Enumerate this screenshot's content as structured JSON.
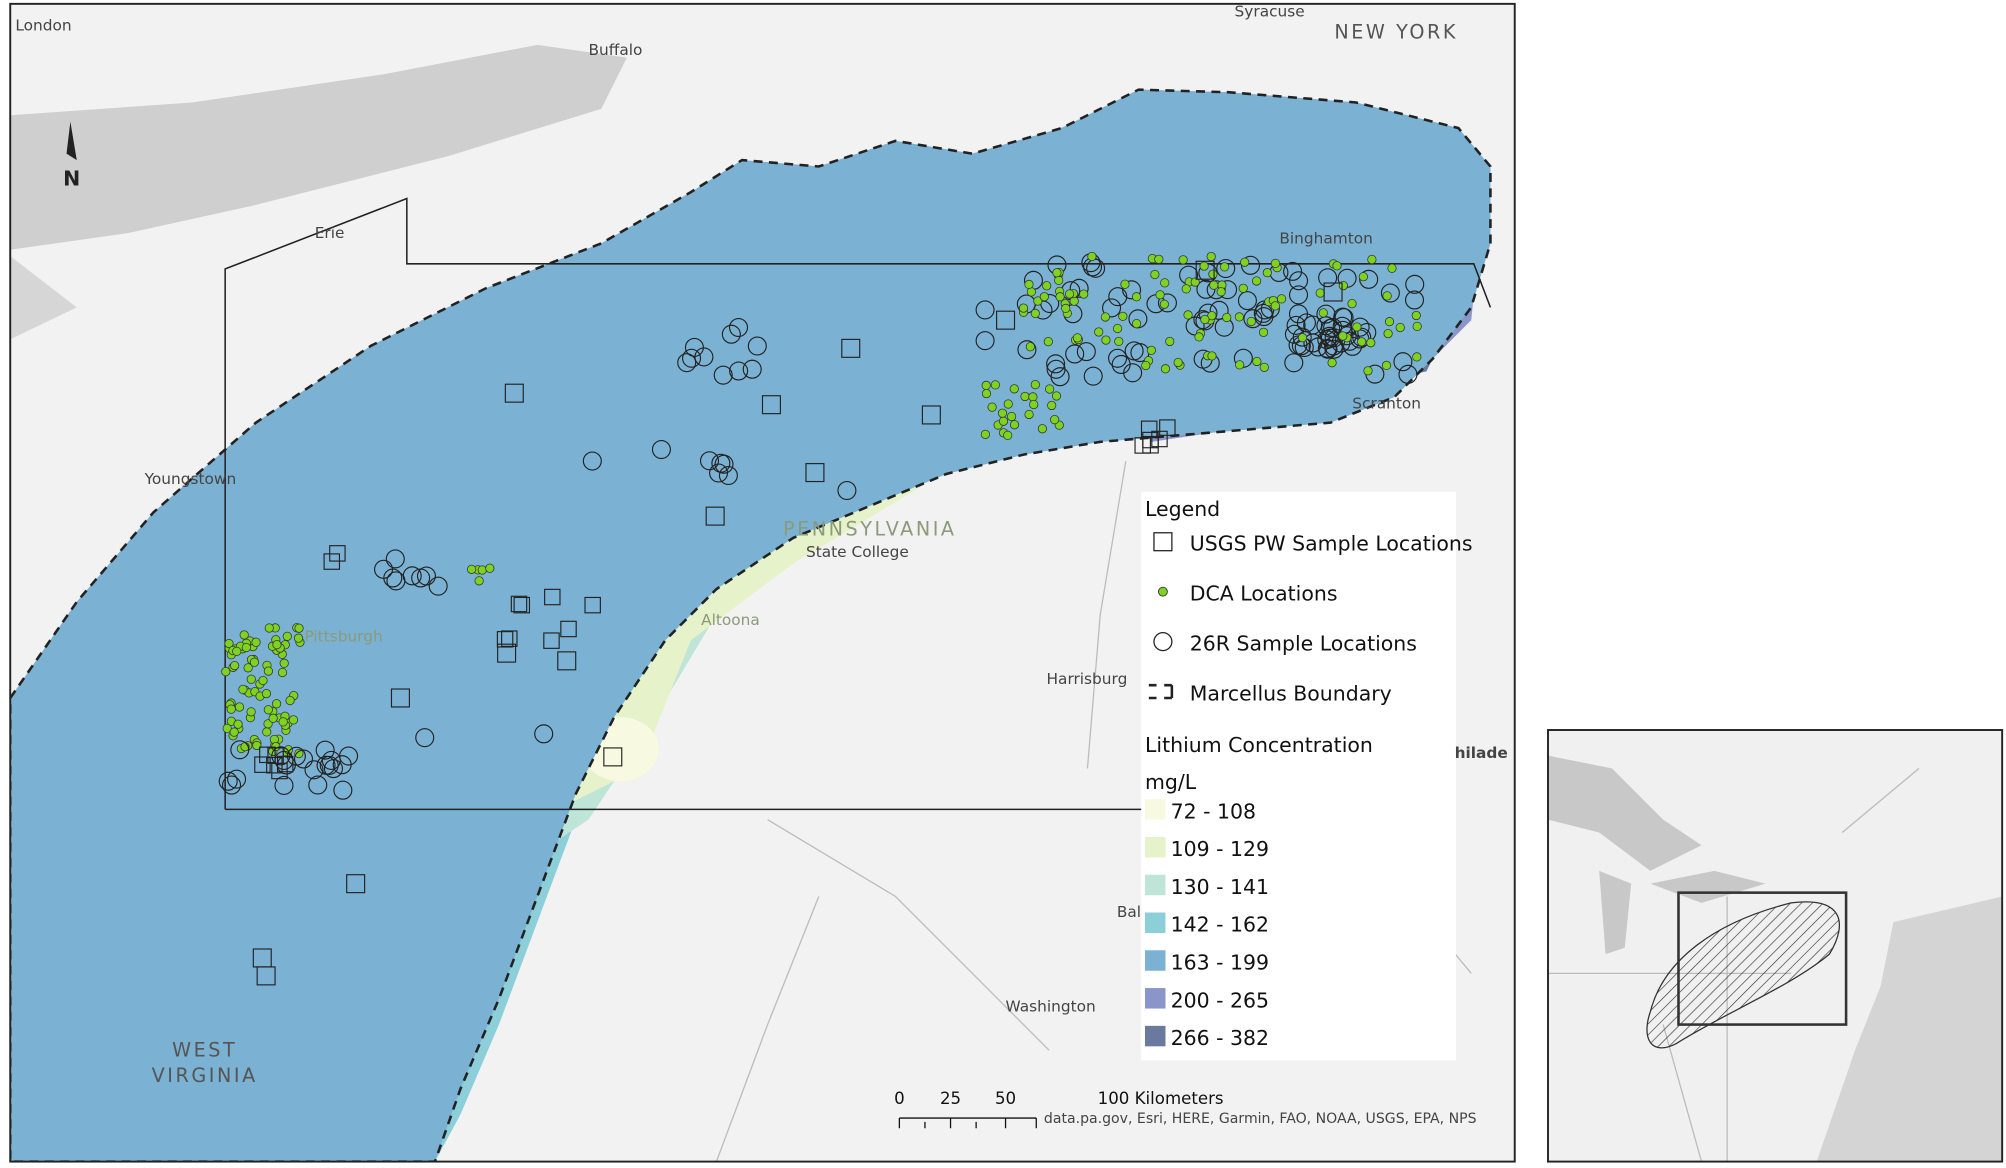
{
  "north_arrow": "N",
  "places": [
    "London",
    "Buffalo",
    "Syracuse",
    "NEW YORK",
    "Erie",
    "Binghamton",
    "Scranton",
    "Youngstown",
    "PENNSYLVANIA",
    "State College",
    "Pittsburgh",
    "Altoona",
    "Harrisburg",
    "Washington",
    [
      "WEST",
      "VIRGINIA"
    ],
    "Bal",
    "hilade"
  ],
  "legend": {
    "title": "Legend",
    "items": [
      "USGS PW Sample Locations",
      "DCA Locations",
      "26R Sample Locations",
      "Marcellus Boundary"
    ],
    "concentration_title": "Lithium Concentration",
    "unit": "mg/L",
    "classes": [
      "72 - 108",
      "109 - 129",
      "130 - 141",
      "142 - 162",
      "163 - 199",
      "200 - 265",
      "266 - 382"
    ]
  },
  "scale_bar": [
    "0",
    "25",
    "50",
    "100 Kilometers"
  ],
  "attribution": "data.pa.gov, Esri, HERE, Garmin, FAO, NOAA, USGS, EPA, NPS"
}
